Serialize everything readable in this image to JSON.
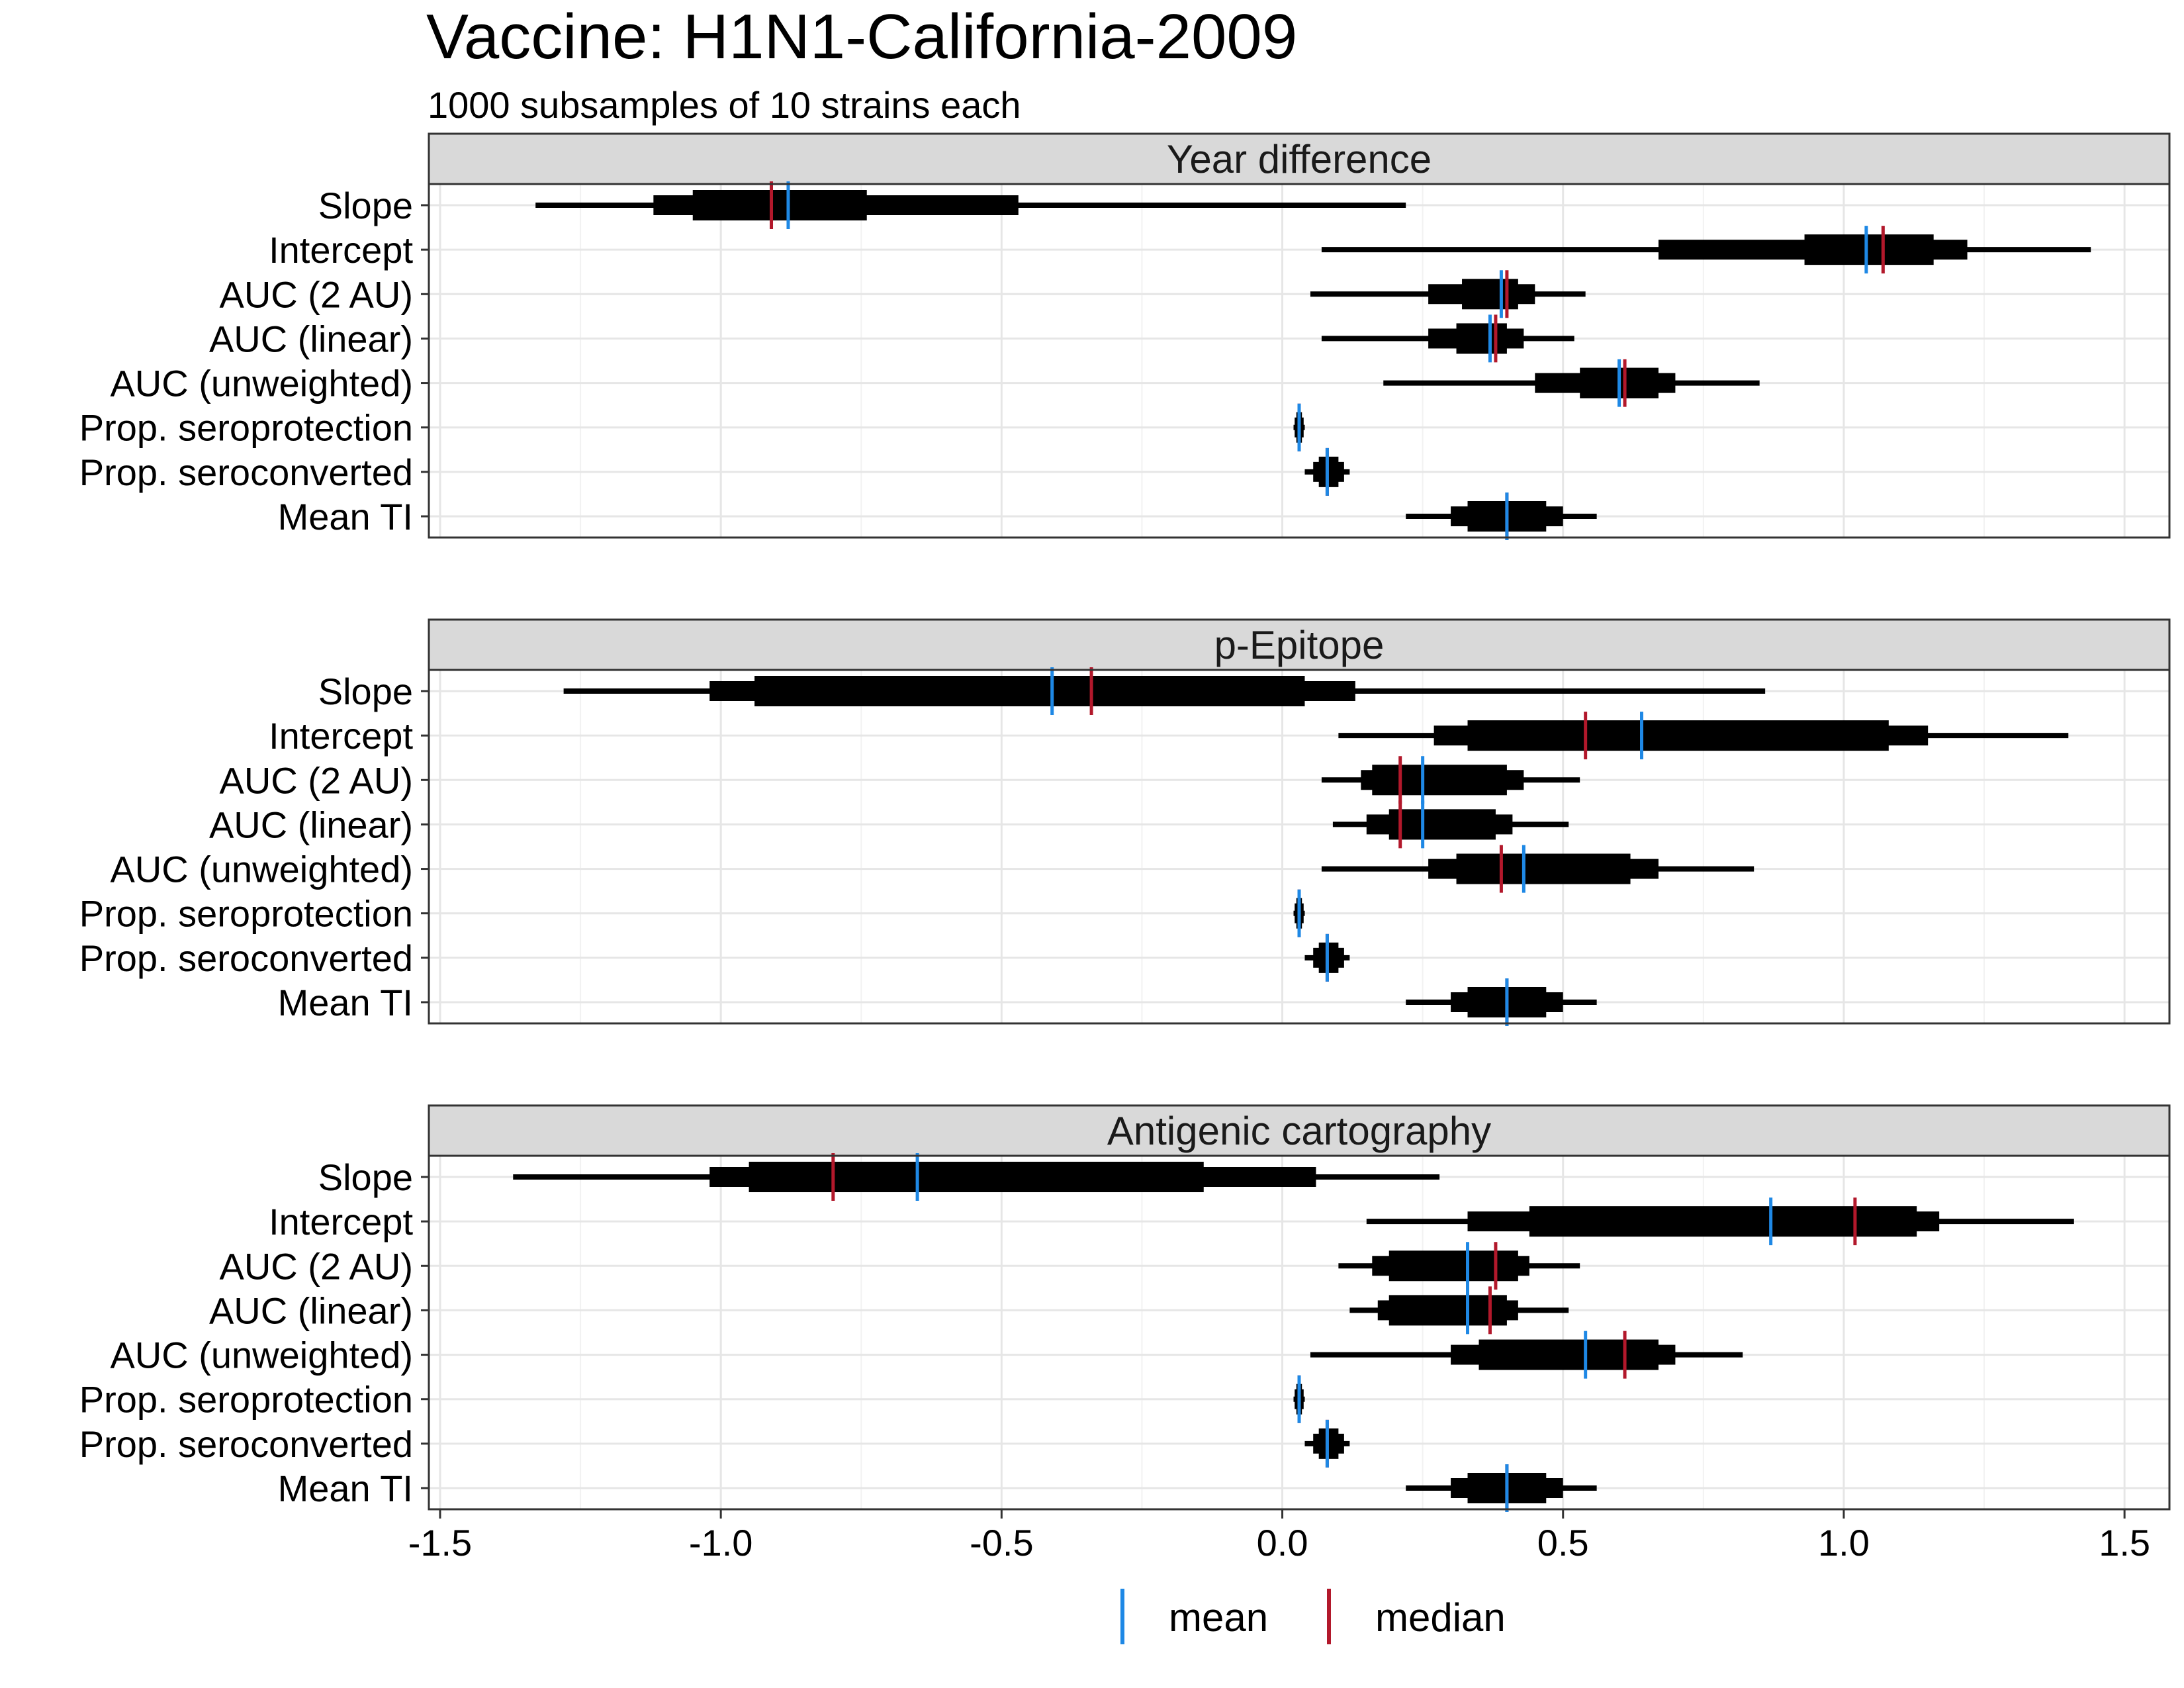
{
  "chart_data": {
    "type": "interval",
    "title": "Vaccine: H1N1-California-2009",
    "subtitle": "1000 subsamples of 10 strains each",
    "xlabel": "",
    "ylabel": "",
    "xlim": [
      -1.52,
      1.58
    ],
    "x_ticks": [
      -1.5,
      -1.0,
      -0.5,
      0.0,
      0.5,
      1.0,
      1.5
    ],
    "x_tick_labels": [
      "-1.5",
      "-1.0",
      "-0.5",
      "0.0",
      "0.5",
      "1.0",
      "1.5"
    ],
    "grid": true,
    "legend_position": "bottom",
    "legend": [
      {
        "key": "mean",
        "label": "mean",
        "color": "#1e88e5"
      },
      {
        "key": "median",
        "label": "median",
        "color": "#b2182b"
      }
    ],
    "rows": [
      "Slope",
      "Intercept",
      "AUC (2 AU)",
      "AUC (linear)",
      "AUC (unweighted)",
      "Prop. seroprotection",
      "Prop. seroconverted",
      "Mean TI"
    ],
    "panels": [
      {
        "name": "Year difference",
        "intervals": [
          {
            "row": "Slope",
            "ci95": [
              -1.33,
              0.22
            ],
            "ci80": [
              -1.12,
              -0.47
            ],
            "ci50": [
              -1.05,
              -0.74
            ],
            "mean": -0.88,
            "median": -0.91
          },
          {
            "row": "Intercept",
            "ci95": [
              0.07,
              1.44
            ],
            "ci80": [
              0.67,
              1.22
            ],
            "ci50": [
              0.93,
              1.16
            ],
            "mean": 1.04,
            "median": 1.07
          },
          {
            "row": "AUC (2 AU)",
            "ci95": [
              0.05,
              0.54
            ],
            "ci80": [
              0.26,
              0.45
            ],
            "ci50": [
              0.32,
              0.42
            ],
            "mean": 0.39,
            "median": 0.4
          },
          {
            "row": "AUC (linear)",
            "ci95": [
              0.07,
              0.52
            ],
            "ci80": [
              0.26,
              0.43
            ],
            "ci50": [
              0.31,
              0.4
            ],
            "mean": 0.37,
            "median": 0.38
          },
          {
            "row": "AUC (unweighted)",
            "ci95": [
              0.18,
              0.85
            ],
            "ci80": [
              0.45,
              0.7
            ],
            "ci50": [
              0.53,
              0.67
            ],
            "mean": 0.6,
            "median": 0.61
          },
          {
            "row": "Prop. seroprotection",
            "ci95": [
              0.02,
              0.04
            ],
            "ci80": [
              0.022,
              0.038
            ],
            "ci50": [
              0.025,
              0.035
            ],
            "mean": 0.03,
            "median": 0.03
          },
          {
            "row": "Prop. seroconverted",
            "ci95": [
              0.04,
              0.12
            ],
            "ci80": [
              0.055,
              0.11
            ],
            "ci50": [
              0.065,
              0.1
            ],
            "mean": 0.08,
            "median": 0.08
          },
          {
            "row": "Mean TI",
            "ci95": [
              0.22,
              0.56
            ],
            "ci80": [
              0.3,
              0.5
            ],
            "ci50": [
              0.33,
              0.47
            ],
            "mean": 0.4,
            "median": 0.4
          }
        ]
      },
      {
        "name": "p-Epitope",
        "intervals": [
          {
            "row": "Slope",
            "ci95": [
              -1.28,
              0.86
            ],
            "ci80": [
              -1.02,
              0.13
            ],
            "ci50": [
              -0.94,
              0.04
            ],
            "mean": -0.41,
            "median": -0.34
          },
          {
            "row": "Intercept",
            "ci95": [
              0.1,
              1.4
            ],
            "ci80": [
              0.27,
              1.15
            ],
            "ci50": [
              0.33,
              1.08
            ],
            "mean": 0.64,
            "median": 0.54
          },
          {
            "row": "AUC (2 AU)",
            "ci95": [
              0.07,
              0.53
            ],
            "ci80": [
              0.14,
              0.43
            ],
            "ci50": [
              0.16,
              0.4
            ],
            "mean": 0.25,
            "median": 0.21
          },
          {
            "row": "AUC (linear)",
            "ci95": [
              0.09,
              0.51
            ],
            "ci80": [
              0.15,
              0.41
            ],
            "ci50": [
              0.19,
              0.38
            ],
            "mean": 0.25,
            "median": 0.21
          },
          {
            "row": "AUC (unweighted)",
            "ci95": [
              0.07,
              0.84
            ],
            "ci80": [
              0.26,
              0.67
            ],
            "ci50": [
              0.31,
              0.62
            ],
            "mean": 0.43,
            "median": 0.39
          },
          {
            "row": "Prop. seroprotection",
            "ci95": [
              0.02,
              0.04
            ],
            "ci80": [
              0.022,
              0.038
            ],
            "ci50": [
              0.025,
              0.035
            ],
            "mean": 0.03,
            "median": 0.03
          },
          {
            "row": "Prop. seroconverted",
            "ci95": [
              0.04,
              0.12
            ],
            "ci80": [
              0.055,
              0.11
            ],
            "ci50": [
              0.065,
              0.1
            ],
            "mean": 0.08,
            "median": 0.08
          },
          {
            "row": "Mean TI",
            "ci95": [
              0.22,
              0.56
            ],
            "ci80": [
              0.3,
              0.5
            ],
            "ci50": [
              0.33,
              0.47
            ],
            "mean": 0.4,
            "median": 0.4
          }
        ]
      },
      {
        "name": "Antigenic cartography",
        "intervals": [
          {
            "row": "Slope",
            "ci95": [
              -1.37,
              0.28
            ],
            "ci80": [
              -1.02,
              0.06
            ],
            "ci50": [
              -0.95,
              -0.14
            ],
            "mean": -0.65,
            "median": -0.8
          },
          {
            "row": "Intercept",
            "ci95": [
              0.15,
              1.41
            ],
            "ci80": [
              0.33,
              1.17
            ],
            "ci50": [
              0.44,
              1.13
            ],
            "mean": 0.87,
            "median": 1.02
          },
          {
            "row": "AUC (2 AU)",
            "ci95": [
              0.1,
              0.53
            ],
            "ci80": [
              0.16,
              0.44
            ],
            "ci50": [
              0.19,
              0.42
            ],
            "mean": 0.33,
            "median": 0.38
          },
          {
            "row": "AUC (linear)",
            "ci95": [
              0.12,
              0.51
            ],
            "ci80": [
              0.17,
              0.42
            ],
            "ci50": [
              0.19,
              0.4
            ],
            "mean": 0.33,
            "median": 0.37
          },
          {
            "row": "AUC (unweighted)",
            "ci95": [
              0.05,
              0.82
            ],
            "ci80": [
              0.3,
              0.7
            ],
            "ci50": [
              0.35,
              0.67
            ],
            "mean": 0.54,
            "median": 0.61
          },
          {
            "row": "Prop. seroprotection",
            "ci95": [
              0.02,
              0.04
            ],
            "ci80": [
              0.022,
              0.038
            ],
            "ci50": [
              0.025,
              0.035
            ],
            "mean": 0.03,
            "median": 0.03
          },
          {
            "row": "Prop. seroconverted",
            "ci95": [
              0.04,
              0.12
            ],
            "ci80": [
              0.055,
              0.11
            ],
            "ci50": [
              0.065,
              0.1
            ],
            "mean": 0.08,
            "median": 0.08
          },
          {
            "row": "Mean TI",
            "ci95": [
              0.22,
              0.56
            ],
            "ci80": [
              0.3,
              0.5
            ],
            "ci50": [
              0.33,
              0.47
            ],
            "mean": 0.4,
            "median": 0.4
          }
        ]
      }
    ]
  }
}
